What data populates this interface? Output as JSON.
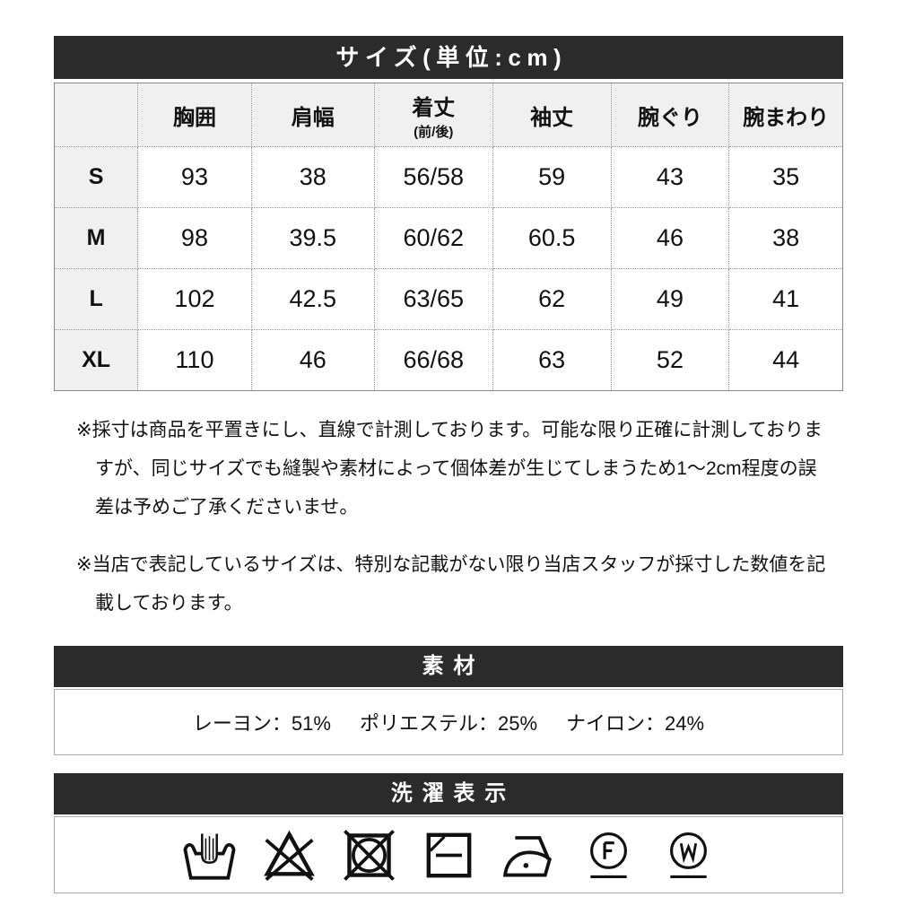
{
  "size_section": {
    "title": "サイズ(単位:cm)",
    "columns": [
      {
        "label": "胸囲"
      },
      {
        "label": "肩幅"
      },
      {
        "label": "着丈",
        "sub": "(前/後)"
      },
      {
        "label": "袖丈"
      },
      {
        "label": "腕ぐり"
      },
      {
        "label": "腕まわり"
      }
    ],
    "rows": [
      {
        "label": "S",
        "values": [
          "93",
          "38",
          "56/58",
          "59",
          "43",
          "35"
        ]
      },
      {
        "label": "M",
        "values": [
          "98",
          "39.5",
          "60/62",
          "60.5",
          "46",
          "38"
        ]
      },
      {
        "label": "L",
        "values": [
          "102",
          "42.5",
          "63/65",
          "62",
          "49",
          "41"
        ]
      },
      {
        "label": "XL",
        "values": [
          "110",
          "46",
          "66/68",
          "63",
          "52",
          "44"
        ]
      }
    ]
  },
  "notes": {
    "note1": "※採寸は商品を平置きにし、直線で計測しております。可能な限り正確に計測しておりますが、同じサイズでも縫製や素材によって個体差が生じてしまうため1〜2cm程度の誤差は予めご了承くださいませ。",
    "note2": "※当店で表記しているサイズは、特別な記載がない限り当店スタッフが採寸した数値を記載しております。"
  },
  "material_section": {
    "title": "素材",
    "items": [
      "レーヨン：51%",
      "ポリエステル：25%",
      "ナイロン：24%"
    ]
  },
  "wash_section": {
    "title": "洗濯表示",
    "symbols": [
      "hand-wash-icon",
      "no-bleach-icon",
      "no-tumble-dry-icon",
      "dry-flat-shade-icon",
      "iron-low-icon",
      "dry-clean-f-icon",
      "wet-clean-w-icon"
    ]
  },
  "colors": {
    "bar_bg": "#2b2b2b",
    "bar_text": "#ffffff",
    "header_bg": "#f0f0f0",
    "text": "#111111"
  }
}
